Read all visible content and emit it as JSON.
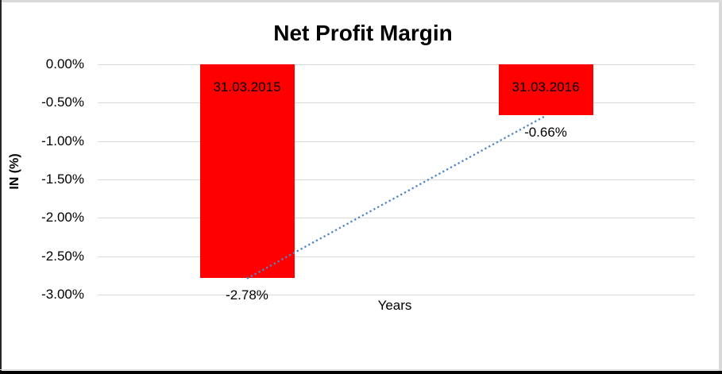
{
  "chart_data": {
    "type": "bar",
    "title": "Net Profit Margin",
    "xlabel": "Years",
    "ylabel": "IN (%)",
    "categories": [
      "31.03.2015",
      "31.03.2016"
    ],
    "values": [
      -2.78,
      -0.66
    ],
    "value_labels": [
      "-2.78%",
      "-0.66%"
    ],
    "ylim": [
      -3.0,
      0.0
    ],
    "yticks": [
      {
        "label": "0.00%",
        "value": 0.0
      },
      {
        "label": "-0.50%",
        "value": -0.5
      },
      {
        "label": "-1.00%",
        "value": -1.0
      },
      {
        "label": "-1.50%",
        "value": -1.5
      },
      {
        "label": "-2.00%",
        "value": -2.0
      },
      {
        "label": "-2.50%",
        "value": -2.5
      },
      {
        "label": "-3.00%",
        "value": -3.0
      }
    ],
    "grid": true,
    "legend": "none",
    "colors": {
      "bar": "#FF0000",
      "bar_label": "#000000",
      "gridline": "#D9D9D9",
      "trendline": "#4E86C8",
      "title": "#000000"
    },
    "trendline": {
      "type": "linear",
      "style": "dotted",
      "color": "#4E86C8",
      "connects": [
        "bar-end 31.03.2015",
        "bar-end 31.03.2016"
      ]
    }
  }
}
